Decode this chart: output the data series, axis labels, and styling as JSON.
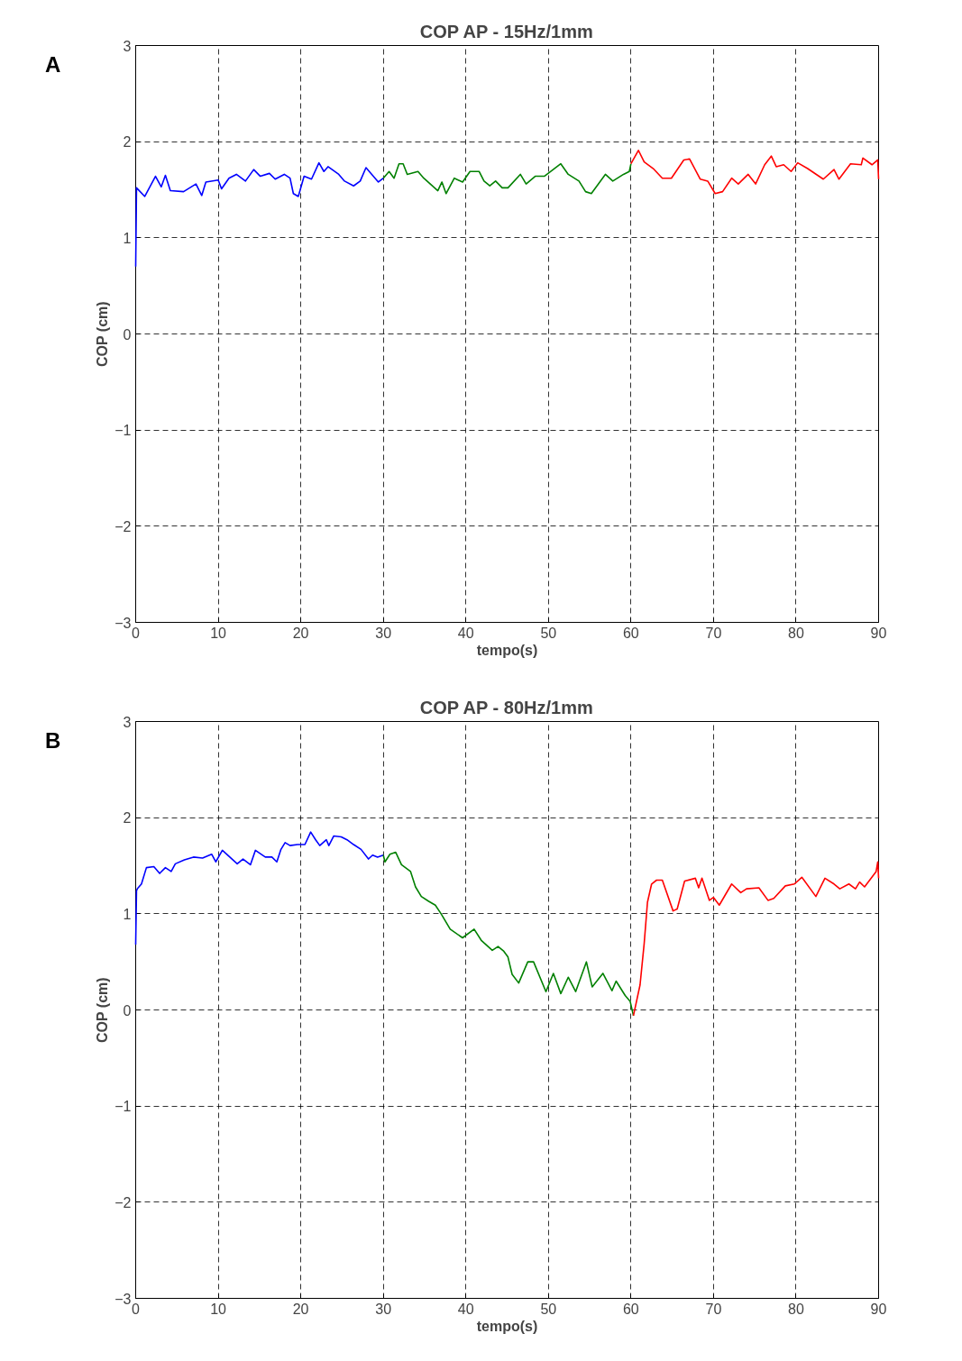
{
  "chart_data": [
    {
      "type": "line",
      "title": "COP AP - 15Hz/1mm",
      "xlabel": "tempo(s)",
      "ylabel": "COP (cm)",
      "annotations": [
        "A"
      ],
      "xlim": [
        0,
        90
      ],
      "ylim": [
        -3,
        3
      ],
      "xticks": [
        0,
        10,
        20,
        30,
        40,
        50,
        60,
        70,
        80,
        90
      ],
      "yticks": [
        -3,
        -2,
        -1,
        0,
        1,
        2,
        3
      ],
      "grid": true,
      "series": [
        {
          "color": "#0000ff",
          "x": [
            0,
            0.1,
            1.1,
            2.4,
            3.1,
            3.6,
            4.2,
            5.8,
            7.3,
            8.0,
            8.5,
            10.0,
            10.4,
            11.3,
            12.2,
            13.3,
            14.3,
            15.1,
            16.2,
            16.9,
            18.0,
            18.7,
            19.1,
            19.7,
            20.4,
            21.3,
            22.2,
            22.8,
            23.3,
            24.6,
            25.3,
            26.4,
            27.2,
            27.9,
            28.6,
            29.4,
            30.0
          ],
          "values": [
            0.7,
            1.52,
            1.43,
            1.64,
            1.53,
            1.65,
            1.49,
            1.48,
            1.56,
            1.44,
            1.58,
            1.6,
            1.51,
            1.62,
            1.66,
            1.59,
            1.71,
            1.64,
            1.67,
            1.61,
            1.66,
            1.62,
            1.46,
            1.43,
            1.64,
            1.61,
            1.78,
            1.69,
            1.74,
            1.66,
            1.59,
            1.54,
            1.59,
            1.73,
            1.66,
            1.58,
            1.62
          ]
        },
        {
          "color": "#008000",
          "x": [
            30.0,
            30.7,
            31.3,
            31.9,
            32.4,
            32.9,
            34.2,
            34.9,
            36.6,
            37.1,
            37.6,
            38.6,
            39.6,
            40.5,
            41.6,
            42.2,
            42.9,
            43.6,
            44.4,
            45.1,
            46.6,
            47.3,
            48.4,
            49.5,
            51.5,
            52.4,
            53.7,
            54.5,
            55.2,
            56.9,
            57.8,
            59.1,
            59.8,
            60.0
          ],
          "values": [
            1.62,
            1.69,
            1.62,
            1.77,
            1.77,
            1.66,
            1.69,
            1.62,
            1.49,
            1.58,
            1.46,
            1.62,
            1.58,
            1.69,
            1.69,
            1.59,
            1.54,
            1.59,
            1.52,
            1.52,
            1.66,
            1.56,
            1.64,
            1.64,
            1.77,
            1.66,
            1.59,
            1.48,
            1.46,
            1.66,
            1.59,
            1.66,
            1.69,
            1.77
          ]
        },
        {
          "color": "#ff0000",
          "x": [
            60.0,
            60.9,
            61.6,
            62.7,
            63.8,
            64.9,
            66.4,
            67.1,
            68.4,
            69.3,
            70.2,
            71.1,
            72.2,
            73.0,
            74.2,
            75.1,
            76.2,
            77.0,
            77.6,
            78.5,
            79.4,
            80.2,
            81.4,
            83.3,
            84.6,
            85.2,
            86.6,
            87.9,
            88.1,
            89.2,
            89.9,
            90.0
          ],
          "values": [
            1.77,
            1.91,
            1.79,
            1.72,
            1.62,
            1.62,
            1.81,
            1.82,
            1.61,
            1.59,
            1.46,
            1.48,
            1.62,
            1.56,
            1.66,
            1.56,
            1.76,
            1.85,
            1.74,
            1.76,
            1.69,
            1.78,
            1.72,
            1.61,
            1.71,
            1.61,
            1.77,
            1.76,
            1.83,
            1.76,
            1.81,
            1.61
          ]
        }
      ]
    },
    {
      "type": "line",
      "title": "COP AP - 80Hz/1mm",
      "xlabel": "tempo(s)",
      "ylabel": "COP (cm)",
      "annotations": [
        "B"
      ],
      "xlim": [
        0,
        90
      ],
      "ylim": [
        -3,
        3
      ],
      "xticks": [
        0,
        10,
        20,
        30,
        40,
        50,
        60,
        70,
        80,
        90
      ],
      "yticks": [
        -3,
        -2,
        -1,
        0,
        1,
        2,
        3
      ],
      "grid": true,
      "series": [
        {
          "color": "#0000ff",
          "x": [
            0,
            0.1,
            0.2,
            0.7,
            1.3,
            2.2,
            2.9,
            3.6,
            4.3,
            4.8,
            5.9,
            7.0,
            8.1,
            9.2,
            9.7,
            10.5,
            11.4,
            12.3,
            13.0,
            13.9,
            14.5,
            15.7,
            16.5,
            17.1,
            17.6,
            18.1,
            18.7,
            19.6,
            20.5,
            21.2,
            21.8,
            22.3,
            23.1,
            23.4,
            24.0,
            24.9,
            25.6,
            26.4,
            27.3,
            28.2,
            28.7,
            29.3,
            30.0
          ],
          "values": [
            0.68,
            1.24,
            1.26,
            1.31,
            1.48,
            1.49,
            1.42,
            1.48,
            1.44,
            1.52,
            1.56,
            1.59,
            1.58,
            1.62,
            1.54,
            1.66,
            1.59,
            1.52,
            1.57,
            1.51,
            1.66,
            1.59,
            1.59,
            1.54,
            1.67,
            1.74,
            1.71,
            1.72,
            1.72,
            1.85,
            1.77,
            1.71,
            1.77,
            1.71,
            1.81,
            1.8,
            1.77,
            1.72,
            1.67,
            1.57,
            1.61,
            1.59,
            1.61
          ]
        },
        {
          "color": "#008000",
          "x": [
            30.0,
            30.2,
            30.8,
            31.5,
            32.2,
            33.3,
            33.9,
            34.6,
            35.5,
            36.3,
            37.0,
            38.1,
            39.6,
            41.0,
            41.9,
            43.2,
            43.9,
            44.6,
            45.1,
            45.6,
            46.4,
            47.5,
            48.2,
            49.7,
            50.6,
            51.5,
            52.4,
            53.3,
            54.6,
            55.3,
            56.6,
            57.7,
            58.2,
            59.3,
            59.9,
            60.3
          ],
          "values": [
            1.61,
            1.54,
            1.62,
            1.64,
            1.51,
            1.44,
            1.28,
            1.18,
            1.13,
            1.09,
            1.0,
            0.84,
            0.75,
            0.84,
            0.72,
            0.62,
            0.66,
            0.61,
            0.55,
            0.37,
            0.28,
            0.5,
            0.5,
            0.19,
            0.38,
            0.17,
            0.34,
            0.19,
            0.5,
            0.24,
            0.38,
            0.2,
            0.3,
            0.15,
            0.09,
            -0.06
          ]
        },
        {
          "color": "#ff0000",
          "x": [
            60.3,
            61.1,
            61.6,
            62.0,
            62.5,
            63.1,
            63.8,
            65.1,
            65.6,
            66.5,
            67.8,
            68.2,
            68.6,
            69.5,
            70.0,
            70.7,
            72.2,
            73.3,
            74.0,
            75.5,
            76.6,
            77.3,
            78.7,
            79.8,
            80.7,
            82.4,
            83.5,
            84.6,
            85.3,
            86.4,
            87.2,
            87.7,
            88.3,
            89.7,
            89.9,
            90.0
          ],
          "values": [
            -0.06,
            0.26,
            0.69,
            1.12,
            1.31,
            1.35,
            1.35,
            1.03,
            1.05,
            1.34,
            1.37,
            1.27,
            1.37,
            1.14,
            1.17,
            1.09,
            1.31,
            1.22,
            1.26,
            1.27,
            1.14,
            1.16,
            1.29,
            1.31,
            1.38,
            1.18,
            1.37,
            1.31,
            1.26,
            1.31,
            1.26,
            1.33,
            1.28,
            1.44,
            1.54,
            1.37
          ]
        }
      ]
    }
  ]
}
